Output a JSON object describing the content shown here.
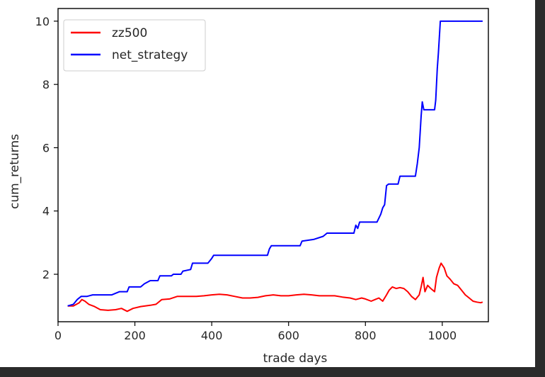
{
  "chart_data": {
    "type": "line",
    "title": "",
    "xlabel": "trade days",
    "ylabel": "cum_returns",
    "xlim": [
      0,
      1120
    ],
    "ylim": [
      0.5,
      10.4
    ],
    "xticks": [
      0,
      200,
      400,
      600,
      800,
      1000
    ],
    "yticks": [
      2,
      4,
      6,
      8,
      10
    ],
    "grid": false,
    "legend_position": "top-left",
    "series": [
      {
        "name": "zz500",
        "color": "#ff0000",
        "points": [
          [
            25,
            1.0
          ],
          [
            40,
            1.0
          ],
          [
            55,
            1.1
          ],
          [
            62,
            1.2
          ],
          [
            70,
            1.15
          ],
          [
            80,
            1.05
          ],
          [
            95,
            0.98
          ],
          [
            110,
            0.88
          ],
          [
            130,
            0.86
          ],
          [
            150,
            0.88
          ],
          [
            165,
            0.92
          ],
          [
            180,
            0.83
          ],
          [
            195,
            0.92
          ],
          [
            215,
            0.98
          ],
          [
            240,
            1.02
          ],
          [
            255,
            1.05
          ],
          [
            270,
            1.2
          ],
          [
            290,
            1.22
          ],
          [
            310,
            1.3
          ],
          [
            340,
            1.3
          ],
          [
            360,
            1.3
          ],
          [
            380,
            1.32
          ],
          [
            400,
            1.35
          ],
          [
            420,
            1.37
          ],
          [
            440,
            1.35
          ],
          [
            460,
            1.3
          ],
          [
            480,
            1.25
          ],
          [
            500,
            1.25
          ],
          [
            520,
            1.27
          ],
          [
            540,
            1.32
          ],
          [
            560,
            1.35
          ],
          [
            580,
            1.32
          ],
          [
            600,
            1.32
          ],
          [
            620,
            1.35
          ],
          [
            640,
            1.37
          ],
          [
            660,
            1.35
          ],
          [
            680,
            1.32
          ],
          [
            700,
            1.32
          ],
          [
            720,
            1.32
          ],
          [
            740,
            1.28
          ],
          [
            760,
            1.25
          ],
          [
            775,
            1.2
          ],
          [
            790,
            1.25
          ],
          [
            800,
            1.22
          ],
          [
            815,
            1.15
          ],
          [
            825,
            1.2
          ],
          [
            835,
            1.25
          ],
          [
            845,
            1.15
          ],
          [
            855,
            1.35
          ],
          [
            862,
            1.5
          ],
          [
            870,
            1.6
          ],
          [
            880,
            1.55
          ],
          [
            890,
            1.58
          ],
          [
            900,
            1.55
          ],
          [
            910,
            1.45
          ],
          [
            920,
            1.3
          ],
          [
            930,
            1.2
          ],
          [
            940,
            1.35
          ],
          [
            945,
            1.6
          ],
          [
            950,
            1.9
          ],
          [
            955,
            1.45
          ],
          [
            962,
            1.65
          ],
          [
            970,
            1.55
          ],
          [
            980,
            1.45
          ],
          [
            985,
            1.9
          ],
          [
            992,
            2.2
          ],
          [
            997,
            2.35
          ],
          [
            1005,
            2.2
          ],
          [
            1012,
            1.95
          ],
          [
            1020,
            1.85
          ],
          [
            1030,
            1.7
          ],
          [
            1040,
            1.65
          ],
          [
            1050,
            1.5
          ],
          [
            1060,
            1.35
          ],
          [
            1070,
            1.25
          ],
          [
            1080,
            1.15
          ],
          [
            1090,
            1.12
          ],
          [
            1100,
            1.1
          ],
          [
            1105,
            1.12
          ]
        ]
      },
      {
        "name": "net_strategy",
        "color": "#0000ff",
        "points": [
          [
            25,
            1.0
          ],
          [
            40,
            1.05
          ],
          [
            50,
            1.2
          ],
          [
            60,
            1.3
          ],
          [
            75,
            1.3
          ],
          [
            90,
            1.35
          ],
          [
            140,
            1.35
          ],
          [
            160,
            1.45
          ],
          [
            180,
            1.45
          ],
          [
            185,
            1.6
          ],
          [
            215,
            1.6
          ],
          [
            225,
            1.7
          ],
          [
            240,
            1.8
          ],
          [
            260,
            1.8
          ],
          [
            265,
            1.95
          ],
          [
            295,
            1.95
          ],
          [
            300,
            2.0
          ],
          [
            320,
            2.0
          ],
          [
            325,
            2.1
          ],
          [
            345,
            2.15
          ],
          [
            350,
            2.35
          ],
          [
            390,
            2.35
          ],
          [
            400,
            2.5
          ],
          [
            405,
            2.6
          ],
          [
            545,
            2.6
          ],
          [
            550,
            2.8
          ],
          [
            555,
            2.9
          ],
          [
            630,
            2.9
          ],
          [
            635,
            3.05
          ],
          [
            665,
            3.1
          ],
          [
            690,
            3.2
          ],
          [
            700,
            3.3
          ],
          [
            770,
            3.3
          ],
          [
            775,
            3.55
          ],
          [
            780,
            3.45
          ],
          [
            785,
            3.65
          ],
          [
            830,
            3.65
          ],
          [
            840,
            3.9
          ],
          [
            845,
            4.1
          ],
          [
            850,
            4.2
          ],
          [
            855,
            4.8
          ],
          [
            860,
            4.85
          ],
          [
            885,
            4.85
          ],
          [
            890,
            5.1
          ],
          [
            930,
            5.1
          ],
          [
            935,
            5.5
          ],
          [
            940,
            6.0
          ],
          [
            945,
            7.0
          ],
          [
            948,
            7.45
          ],
          [
            952,
            7.2
          ],
          [
            980,
            7.2
          ],
          [
            983,
            7.5
          ],
          [
            987,
            8.5
          ],
          [
            990,
            9.0
          ],
          [
            995,
            10.0
          ],
          [
            1105,
            10.0
          ]
        ]
      }
    ]
  }
}
